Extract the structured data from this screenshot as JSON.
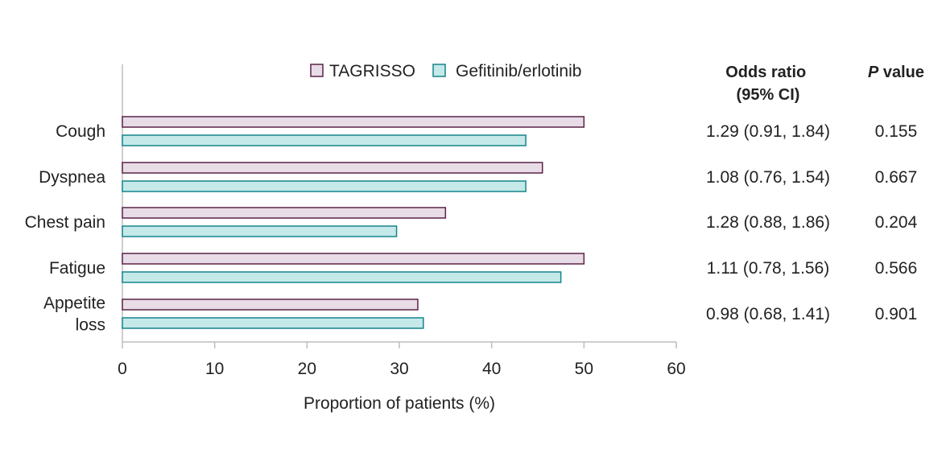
{
  "chart_data": {
    "type": "bar",
    "orientation": "horizontal",
    "categories": [
      "Cough",
      "Dyspnea",
      "Chest pain",
      "Fatigue",
      "Appetite loss"
    ],
    "category_lines": [
      [
        "Cough"
      ],
      [
        "Dyspnea"
      ],
      [
        "Chest pain"
      ],
      [
        "Fatigue"
      ],
      [
        "Appetite",
        "loss"
      ]
    ],
    "series": [
      {
        "name": "TAGRISSO",
        "values": [
          50,
          45.5,
          35,
          50,
          32
        ],
        "fill": "#e8dce6",
        "stroke": "#5c2348"
      },
      {
        "name": "Gefitinib/erlotinib",
        "values": [
          43.7,
          43.7,
          29.7,
          47.5,
          32.6
        ],
        "fill": "#c5e8e9",
        "stroke": "#15848a"
      }
    ],
    "xlabel": "Proportion of patients (%)",
    "xlim": [
      0,
      60
    ],
    "xticks": [
      "0",
      "10",
      "20",
      "30",
      "40",
      "50",
      "60"
    ],
    "xtick_values": [
      0,
      10,
      20,
      30,
      40,
      50,
      60
    ],
    "grid": false,
    "legend_position": "top"
  },
  "table": {
    "header_odds": [
      "Odds ratio",
      "(95% CI)"
    ],
    "header_p_italic": "P",
    "header_p_rest": " value",
    "odds": [
      "1.29 (0.91, 1.84)",
      "1.08 (0.76, 1.54)",
      "1.28 (0.88, 1.86)",
      "1.11 (0.78, 1.56)",
      "0.98 (0.68, 1.41)"
    ],
    "p_values": [
      "0.155",
      "0.667",
      "0.204",
      "0.566",
      "0.901"
    ]
  }
}
